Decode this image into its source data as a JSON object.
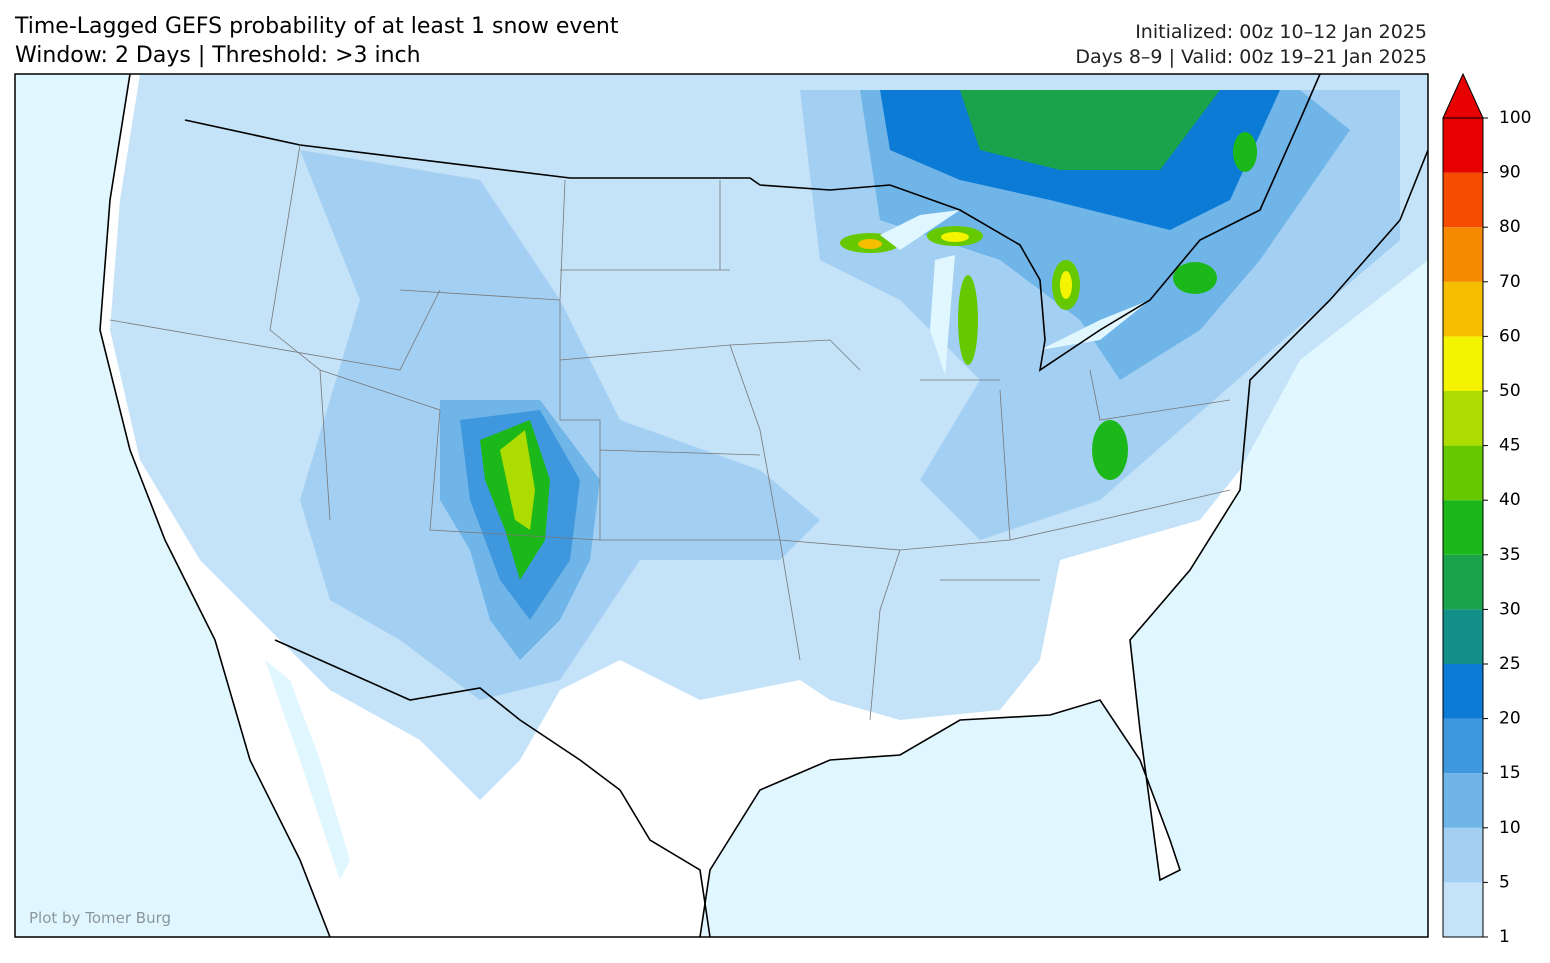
{
  "header": {
    "title_line1": "Time-Lagged GEFS probability of at least 1 snow event",
    "title_line2": "Window: 2 Days | Threshold: >3 inch",
    "init": "Initialized: 00z 10–12 Jan 2025",
    "valid": "Days 8–9 | Valid: 00z 19–21 Jan 2025"
  },
  "colorbar": {
    "ticks": [
      1,
      5,
      10,
      15,
      20,
      25,
      30,
      35,
      40,
      45,
      50,
      60,
      70,
      80,
      90,
      100
    ],
    "colors": [
      "#c4e2f8",
      "#a3cff2",
      "#70b5e8",
      "#3f97dd",
      "#0b7bd6",
      "#129088",
      "#1aa34b",
      "#1cb81a",
      "#66c900",
      "#acdc00",
      "#f4f400",
      "#f5bf00",
      "#f58a00",
      "#f54c00",
      "#e60000"
    ],
    "extend_color": "#e60000"
  },
  "credit": "Plot by Tomer Burg"
}
